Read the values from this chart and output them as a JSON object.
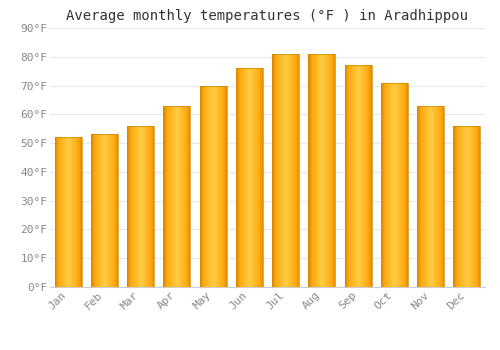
{
  "title": "Average monthly temperatures (°F ) in Aradhippou",
  "months": [
    "Jan",
    "Feb",
    "Mar",
    "Apr",
    "May",
    "Jun",
    "Jul",
    "Aug",
    "Sep",
    "Oct",
    "Nov",
    "Dec"
  ],
  "values": [
    52,
    53,
    56,
    63,
    70,
    76,
    81,
    81,
    77,
    71,
    63,
    56
  ],
  "bar_color_main": "#FFAA00",
  "bar_color_light": "#FFD060",
  "bar_color_dark": "#E07800",
  "background_color": "#FFFFFF",
  "ylim": [
    0,
    90
  ],
  "yticks": [
    0,
    10,
    20,
    30,
    40,
    50,
    60,
    70,
    80,
    90
  ],
  "ytick_labels": [
    "0°F",
    "10°F",
    "20°F",
    "30°F",
    "40°F",
    "50°F",
    "60°F",
    "70°F",
    "80°F",
    "90°F"
  ],
  "grid_color": "#E8E8E8",
  "title_fontsize": 10,
  "tick_fontsize": 8,
  "font_family": "monospace",
  "tick_color": "#888888",
  "bar_width": 0.75
}
